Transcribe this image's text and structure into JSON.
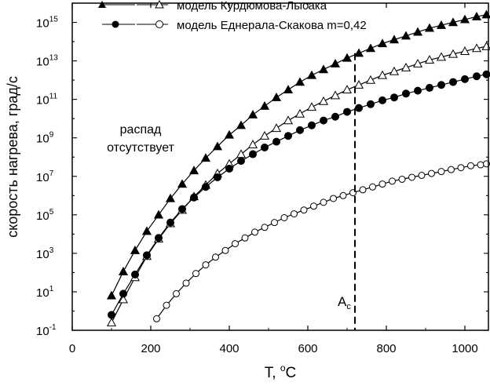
{
  "chart_data": {
    "type": "line",
    "xlabel": "T, ",
    "xlabel_sup": "o",
    "xlabel_unit": "C",
    "ylabel": "скорость нагрева, град/с",
    "xlim": [
      0,
      1060
    ],
    "ylim_log10": [
      -1,
      16
    ],
    "x_ticks": [
      0,
      200,
      400,
      600,
      800,
      1000
    ],
    "x_tick_labels": [
      "0",
      "200",
      "400",
      "600",
      "800",
      "1000"
    ],
    "y_ticks": [
      {
        "exp": 15,
        "base": "10",
        "sup": "15"
      },
      {
        "exp": 13,
        "base": "10",
        "sup": "13"
      },
      {
        "exp": 11,
        "base": "10",
        "sup": "11"
      },
      {
        "exp": 9,
        "base": "10",
        "sup": "9"
      },
      {
        "exp": 7,
        "base": "10",
        "sup": "7"
      },
      {
        "exp": 5,
        "base": "10",
        "sup": "5"
      },
      {
        "exp": 3,
        "base": "10",
        "sup": "3"
      },
      {
        "exp": 1,
        "base": "10",
        "sup": "1"
      },
      {
        "exp": -1,
        "base": "10",
        "sup": "-1"
      }
    ],
    "legend": {
      "placement": "top-left",
      "entries": [
        {
          "symbols": "▲–△",
          "label": "модель Курдюмова-Лысака"
        },
        {
          "symbols": "●–○",
          "label": "модель Еднерала-Скакова m=0,42"
        }
      ]
    },
    "annotations": {
      "region_text_line1": "распад",
      "region_text_line2": "отсутствует",
      "ac_label": "A",
      "ac_sub": "c",
      "ac_x": 720
    },
    "series": [
      {
        "name": "Курдюмов-Лысак (сплошные ▲)",
        "marker": "triangle",
        "filled": true,
        "x": [
          100,
          130,
          160,
          190,
          220,
          250,
          280,
          310,
          340,
          370,
          400,
          430,
          460,
          490,
          520,
          550,
          580,
          610,
          640,
          670,
          700,
          730,
          760,
          790,
          820,
          850,
          880,
          910,
          940,
          970,
          1000,
          1030,
          1055
        ],
        "log10_y": [
          0.8,
          2.05,
          3.15,
          4.15,
          5.0,
          5.85,
          6.6,
          7.3,
          7.95,
          8.55,
          9.15,
          9.65,
          10.2,
          10.65,
          11.1,
          11.5,
          11.9,
          12.25,
          12.55,
          12.85,
          13.15,
          13.4,
          13.65,
          13.9,
          14.1,
          14.3,
          14.5,
          14.7,
          14.85,
          15.0,
          15.15,
          15.3,
          15.4
        ]
      },
      {
        "name": "Курдюмов-Лысак (открытые △)",
        "marker": "triangle",
        "filled": false,
        "x": [
          100,
          130,
          160,
          190,
          220,
          250,
          280,
          310,
          340,
          370,
          400,
          430,
          460,
          490,
          520,
          550,
          580,
          610,
          640,
          670,
          700,
          730,
          760,
          790,
          820,
          850,
          880,
          910,
          940,
          970,
          1000,
          1030,
          1055
        ],
        "log10_y": [
          -0.6,
          0.6,
          1.75,
          2.85,
          3.75,
          4.55,
          5.25,
          5.95,
          6.55,
          7.15,
          7.65,
          8.15,
          8.65,
          9.1,
          9.5,
          9.9,
          10.25,
          10.6,
          10.9,
          11.2,
          11.5,
          11.75,
          12.0,
          12.25,
          12.45,
          12.65,
          12.85,
          13.05,
          13.2,
          13.35,
          13.5,
          13.65,
          13.75
        ]
      },
      {
        "name": "Еднерал-Скаков (сплошные ●)",
        "marker": "circle",
        "filled": true,
        "x": [
          100,
          130,
          160,
          190,
          220,
          250,
          280,
          310,
          340,
          370,
          400,
          430,
          460,
          490,
          520,
          550,
          580,
          610,
          640,
          670,
          700,
          730,
          760,
          790,
          820,
          850,
          880,
          910,
          940,
          970,
          1000,
          1030,
          1055
        ],
        "log10_y": [
          -0.2,
          0.9,
          1.9,
          2.9,
          3.8,
          4.6,
          5.3,
          5.9,
          6.45,
          6.95,
          7.4,
          7.8,
          8.15,
          8.5,
          8.8,
          9.1,
          9.4,
          9.65,
          9.9,
          10.1,
          10.35,
          10.55,
          10.75,
          10.95,
          11.1,
          11.3,
          11.45,
          11.6,
          11.75,
          11.9,
          12.05,
          12.2,
          12.3
        ]
      },
      {
        "name": "Еднерал-Скаков (открытые ○)",
        "marker": "circle",
        "filled": false,
        "x": [
          215,
          240,
          265,
          290,
          315,
          340,
          365,
          390,
          415,
          440,
          465,
          490,
          515,
          540,
          565,
          590,
          615,
          640,
          665,
          690,
          715,
          740,
          765,
          790,
          815,
          840,
          865,
          890,
          915,
          940,
          965,
          990,
          1015,
          1040,
          1055
        ],
        "log10_y": [
          -0.4,
          0.3,
          0.9,
          1.45,
          1.95,
          2.4,
          2.8,
          3.15,
          3.5,
          3.8,
          4.1,
          4.35,
          4.6,
          4.85,
          5.05,
          5.25,
          5.45,
          5.65,
          5.85,
          6.0,
          6.15,
          6.3,
          6.45,
          6.6,
          6.75,
          6.85,
          6.95,
          7.05,
          7.15,
          7.25,
          7.35,
          7.45,
          7.55,
          7.6,
          7.65
        ]
      }
    ]
  }
}
